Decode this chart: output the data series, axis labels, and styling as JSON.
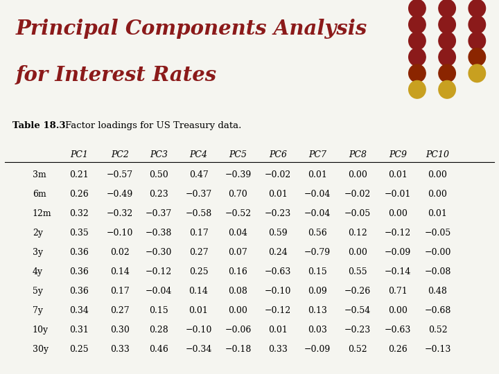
{
  "title_line1": "Principal Components Analysis",
  "title_line2": "for Interest Rates",
  "title_color": "#8B1A1A",
  "table_label": "Table 18.3",
  "table_caption": "Factor loadings for US Treasury data.",
  "col_headers": [
    "",
    "PC1",
    "PC2",
    "PC3",
    "PC4",
    "PC5",
    "PC6",
    "PC7",
    "PC8",
    "PC9",
    "PC10"
  ],
  "rows": [
    [
      "3m",
      "0.21",
      "−0.57",
      "0.50",
      "0.47",
      "−0.39",
      "−0.02",
      "0.01",
      "0.00",
      "0.01",
      "0.00"
    ],
    [
      "6m",
      "0.26",
      "−0.49",
      "0.23",
      "−0.37",
      "0.70",
      "0.01",
      "−0.04",
      "−0.02",
      "−0.01",
      "0.00"
    ],
    [
      "12m",
      "0.32",
      "−0.32",
      "−0.37",
      "−0.58",
      "−0.52",
      "−0.23",
      "−0.04",
      "−0.05",
      "0.00",
      "0.01"
    ],
    [
      "2y",
      "0.35",
      "−0.10",
      "−0.38",
      "0.17",
      "0.04",
      "0.59",
      "0.56",
      "0.12",
      "−0.12",
      "−0.05"
    ],
    [
      "3y",
      "0.36",
      "0.02",
      "−0.30",
      "0.27",
      "0.07",
      "0.24",
      "−0.79",
      "0.00",
      "−0.09",
      "−0.00"
    ],
    [
      "4y",
      "0.36",
      "0.14",
      "−0.12",
      "0.25",
      "0.16",
      "−0.63",
      "0.15",
      "0.55",
      "−0.14",
      "−0.08"
    ],
    [
      "5y",
      "0.36",
      "0.17",
      "−0.04",
      "0.14",
      "0.08",
      "−0.10",
      "0.09",
      "−0.26",
      "0.71",
      "0.48"
    ],
    [
      "7y",
      "0.34",
      "0.27",
      "0.15",
      "0.01",
      "0.00",
      "−0.12",
      "0.13",
      "−0.54",
      "0.00",
      "−0.68"
    ],
    [
      "10y",
      "0.31",
      "0.30",
      "0.28",
      "−0.10",
      "−0.06",
      "0.01",
      "0.03",
      "−0.23",
      "−0.63",
      "0.52"
    ],
    [
      "30y",
      "0.25",
      "0.33",
      "0.46",
      "−0.34",
      "−0.18",
      "0.33",
      "−0.09",
      "0.52",
      "0.26",
      "−0.13"
    ]
  ],
  "bg_color": "#F5F5F0",
  "table_bg": "#FFFFFF",
  "separator_color": "#5C4033",
  "dot_grid": [
    [
      "#8B1A1A",
      "#8B1A1A",
      "#8B1A1A"
    ],
    [
      "#8B1A1A",
      "#8B1A1A",
      "#8B1A1A"
    ],
    [
      "#8B1A1A",
      "#8B1A1A",
      "#8B1A1A"
    ],
    [
      "#8B1A1A",
      "#8B1A1A",
      "#8B2500"
    ],
    [
      "#8B2500",
      "#8B2500",
      "#C8A020"
    ],
    [
      "#C8A020",
      "#C8A020",
      null
    ]
  ]
}
